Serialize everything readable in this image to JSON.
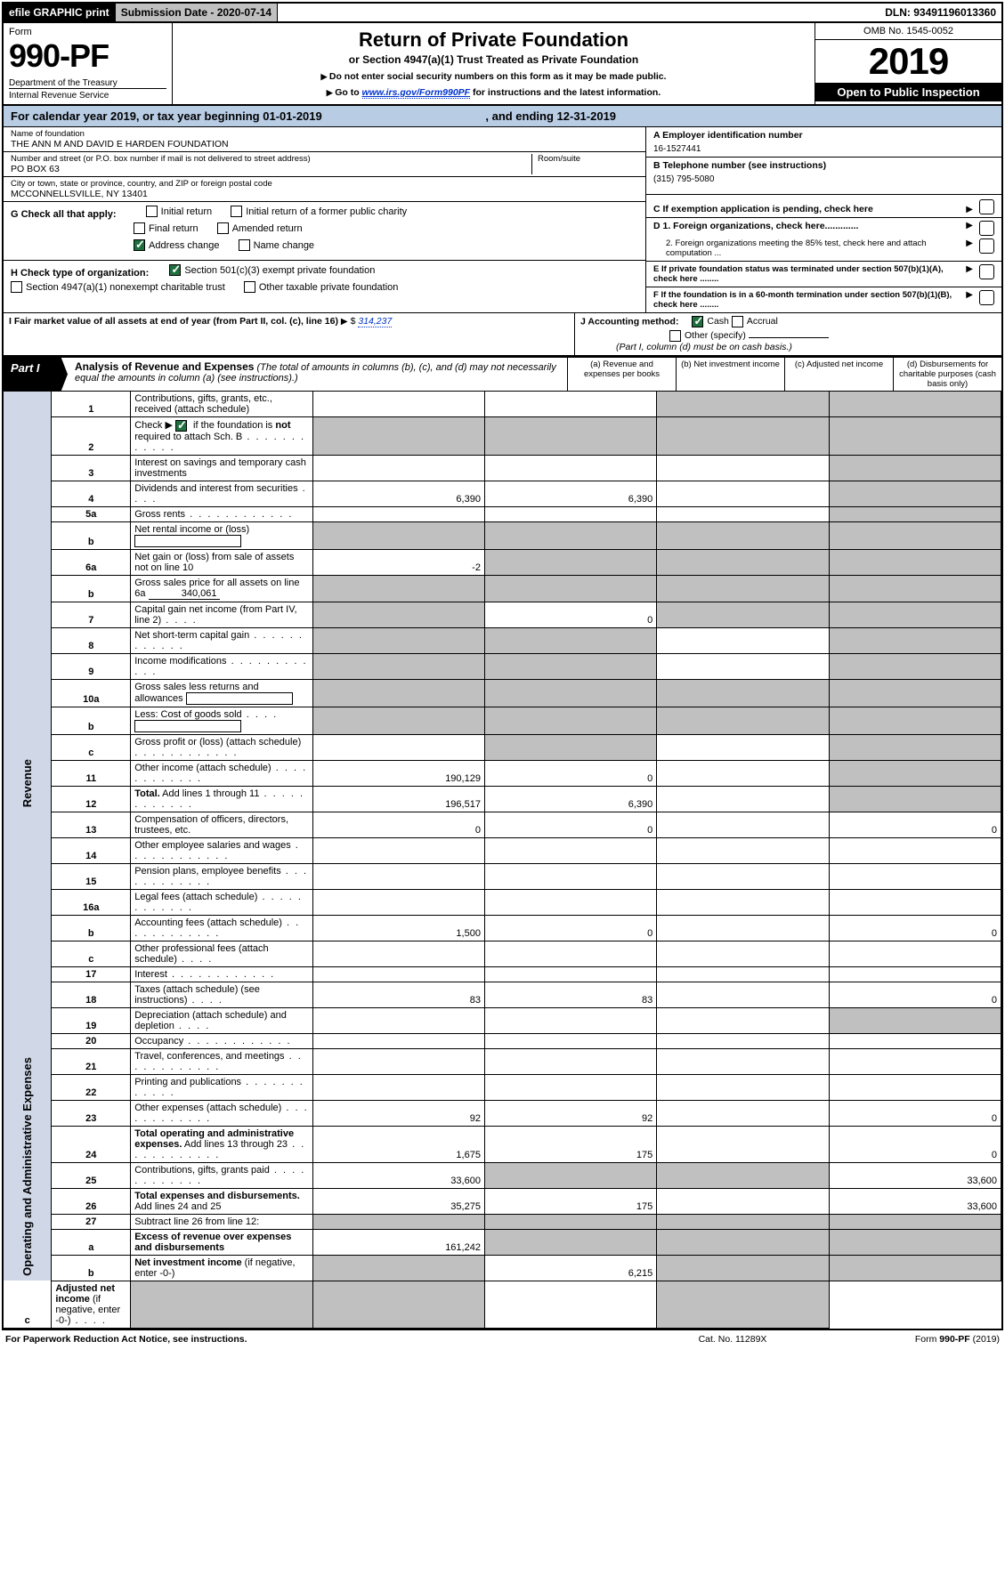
{
  "topbar": {
    "efile": "efile GRAPHIC print",
    "subdate_label": "Submission Date - 2020-07-14",
    "dln": "DLN: 93491196013360"
  },
  "header": {
    "form_label": "Form",
    "form_number": "990-PF",
    "dept": "Department of the Treasury",
    "irs": "Internal Revenue Service",
    "title": "Return of Private Foundation",
    "subtitle": "or Section 4947(a)(1) Trust Treated as Private Foundation",
    "note1": "Do not enter social security numbers on this form as it may be made public.",
    "note2_pre": "Go to ",
    "note2_link": "www.irs.gov/Form990PF",
    "note2_post": " for instructions and the latest information.",
    "omb": "OMB No. 1545-0052",
    "year": "2019",
    "open": "Open to Public Inspection"
  },
  "calyear": {
    "text_pre": "For calendar year 2019, or tax year beginning ",
    "begin": "01-01-2019",
    "text_mid": ", and ending ",
    "end": "12-31-2019"
  },
  "info": {
    "name_label": "Name of foundation",
    "name": "THE ANN M AND DAVID E HARDEN FOUNDATION",
    "street_label": "Number and street (or P.O. box number if mail is not delivered to street address)",
    "street": "PO BOX 63",
    "room_label": "Room/suite",
    "room": "",
    "city_label": "City or town, state or province, country, and ZIP or foreign postal code",
    "city": "MCCONNELLSVILLE, NY  13401",
    "A_label": "A Employer identification number",
    "A_val": "16-1527441",
    "B_label": "B Telephone number (see instructions)",
    "B_val": "(315) 795-5080",
    "C_label": "C If exemption application is pending, check here",
    "D1": "D 1. Foreign organizations, check here.............",
    "D2": "2. Foreign organizations meeting the 85% test, check here and attach computation ...",
    "E": "E  If private foundation status was terminated under section 507(b)(1)(A), check here ........",
    "F": "F  If the foundation is in a 60-month termination under section 507(b)(1)(B), check here ........"
  },
  "checks": {
    "G_label": "G Check all that apply:",
    "initial_return": "Initial return",
    "initial_former": "Initial return of a former public charity",
    "final_return": "Final return",
    "amended": "Amended return",
    "address_change": "Address change",
    "name_change": "Name change",
    "H_label": "H Check type of organization:",
    "h501c3": "Section 501(c)(3) exempt private foundation",
    "h4947": "Section 4947(a)(1) nonexempt charitable trust",
    "hother": "Other taxable private foundation",
    "I_label": "I Fair market value of all assets at end of year (from Part II, col. (c), line 16)",
    "I_val": "314,237",
    "J_label": "J Accounting method:",
    "cash": "Cash",
    "accrual": "Accrual",
    "other_specify": "Other (specify)",
    "J_note": "(Part I, column (d) must be on cash basis.)"
  },
  "part1": {
    "tag": "Part I",
    "title": "Analysis of Revenue and Expenses",
    "title_note": "(The total of amounts in columns (b), (c), and (d) may not necessarily equal the amounts in column (a) (see instructions).)",
    "cols": {
      "a": "(a)   Revenue and expenses per books",
      "b": "(b)   Net investment income",
      "c": "(c)   Adjusted net income",
      "d": "(d)   Disbursements for charitable purposes (cash basis only)"
    }
  },
  "sidelabels": {
    "revenue": "Revenue",
    "oae": "Operating and Administrative Expenses"
  },
  "rows": [
    {
      "n": "1",
      "desc": "Contributions, gifts, grants, etc., received (attach schedule)",
      "a": "",
      "b": "",
      "c": "_",
      "d": "_",
      "dshade": true,
      "cshade": true
    },
    {
      "n": "2",
      "desc_html": "Check ▶ [CK] if the foundation is <b>not</b> required to attach Sch. B",
      "dots": true,
      "a": "_",
      "b": "_",
      "c": "_",
      "d": "_",
      "allshade": true
    },
    {
      "n": "3",
      "desc": "Interest on savings and temporary cash investments",
      "a": "",
      "b": "",
      "c": "",
      "d": "_",
      "dshade": true
    },
    {
      "n": "4",
      "desc": "Dividends and interest from securities",
      "dots_s": true,
      "a": "6,390",
      "b": "6,390",
      "c": "",
      "d": "_",
      "dshade": true
    },
    {
      "n": "5a",
      "desc": "Gross rents",
      "dots": true,
      "a": "",
      "b": "",
      "c": "",
      "d": "_",
      "dshade": true
    },
    {
      "n": "b",
      "desc": "Net rental income or (loss)",
      "inlinebox": "",
      "a": "_",
      "b": "_",
      "c": "_",
      "d": "_",
      "allshade": true
    },
    {
      "n": "6a",
      "desc": "Net gain or (loss) from sale of assets not on line 10",
      "a": "-2",
      "b": "_",
      "c": "_",
      "d": "_",
      "bshade": true,
      "cshade": true,
      "dshade": true
    },
    {
      "n": "b",
      "desc": "Gross sales price for all assets on line 6a",
      "uline": "340,061",
      "a": "_",
      "b": "_",
      "c": "_",
      "d": "_",
      "allshade": true
    },
    {
      "n": "7",
      "desc": "Capital gain net income (from Part IV, line 2)",
      "dots_s": true,
      "a": "_",
      "b": "0",
      "c": "_",
      "d": "_",
      "ashade": true,
      "cshade": true,
      "dshade": true
    },
    {
      "n": "8",
      "desc": "Net short-term capital gain",
      "dots": true,
      "a": "_",
      "b": "_",
      "c": "",
      "d": "_",
      "ashade": true,
      "bshade": true,
      "dshade": true
    },
    {
      "n": "9",
      "desc": "Income modifications",
      "dots": true,
      "a": "_",
      "b": "_",
      "c": "",
      "d": "_",
      "ashade": true,
      "bshade": true,
      "dshade": true
    },
    {
      "n": "10a",
      "desc": "Gross sales less returns and allowances",
      "inlinebox": "",
      "a": "_",
      "b": "_",
      "c": "_",
      "d": "_",
      "allshade": true
    },
    {
      "n": "b",
      "desc": "Less: Cost of goods sold",
      "dots_s": true,
      "inlinebox": "",
      "a": "_",
      "b": "_",
      "c": "_",
      "d": "_",
      "allshade": true
    },
    {
      "n": "c",
      "desc": "Gross profit or (loss) (attach schedule)",
      "dots": true,
      "a": "",
      "b": "_",
      "c": "",
      "d": "_",
      "bshade": true,
      "dshade": true
    },
    {
      "n": "11",
      "desc": "Other income (attach schedule)",
      "dots": true,
      "a": "190,129",
      "b": "0",
      "c": "",
      "d": "_",
      "dshade": true
    },
    {
      "n": "12",
      "desc": "<b>Total.</b> Add lines 1 through 11",
      "dots": true,
      "a": "196,517",
      "b": "6,390",
      "c": "",
      "d": "_",
      "dshade": true
    },
    {
      "n": "13",
      "desc": "Compensation of officers, directors, trustees, etc.",
      "a": "0",
      "b": "0",
      "c": "",
      "d": "0"
    },
    {
      "n": "14",
      "desc": "Other employee salaries and wages",
      "dots": true,
      "a": "",
      "b": "",
      "c": "",
      "d": ""
    },
    {
      "n": "15",
      "desc": "Pension plans, employee benefits",
      "dots": true,
      "a": "",
      "b": "",
      "c": "",
      "d": ""
    },
    {
      "n": "16a",
      "desc": "Legal fees (attach schedule)",
      "dots": true,
      "a": "",
      "b": "",
      "c": "",
      "d": ""
    },
    {
      "n": "b",
      "desc": "Accounting fees (attach schedule)",
      "dots": true,
      "a": "1,500",
      "b": "0",
      "c": "",
      "d": "0"
    },
    {
      "n": "c",
      "desc": "Other professional fees (attach schedule)",
      "dots_s": true,
      "a": "",
      "b": "",
      "c": "",
      "d": ""
    },
    {
      "n": "17",
      "desc": "Interest",
      "dots": true,
      "a": "",
      "b": "",
      "c": "",
      "d": ""
    },
    {
      "n": "18",
      "desc": "Taxes (attach schedule) (see instructions)",
      "dots_s": true,
      "a": "83",
      "b": "83",
      "c": "",
      "d": "0"
    },
    {
      "n": "19",
      "desc": "Depreciation (attach schedule) and depletion",
      "dots_s": true,
      "a": "",
      "b": "",
      "c": "",
      "d": "_",
      "dshade": true
    },
    {
      "n": "20",
      "desc": "Occupancy",
      "dots": true,
      "a": "",
      "b": "",
      "c": "",
      "d": ""
    },
    {
      "n": "21",
      "desc": "Travel, conferences, and meetings",
      "dots": true,
      "a": "",
      "b": "",
      "c": "",
      "d": ""
    },
    {
      "n": "22",
      "desc": "Printing and publications",
      "dots": true,
      "a": "",
      "b": "",
      "c": "",
      "d": ""
    },
    {
      "n": "23",
      "desc": "Other expenses (attach schedule)",
      "dots": true,
      "a": "92",
      "b": "92",
      "c": "",
      "d": "0"
    },
    {
      "n": "24",
      "desc": "<b>Total operating and administrative expenses.</b> Add lines 13 through 23",
      "dots": true,
      "a": "1,675",
      "b": "175",
      "c": "",
      "d": "0"
    },
    {
      "n": "25",
      "desc": "Contributions, gifts, grants paid",
      "dots": true,
      "a": "33,600",
      "b": "_",
      "c": "_",
      "d": "33,600",
      "bshade": true,
      "cshade": true
    },
    {
      "n": "26",
      "desc": "<b>Total expenses and disbursements.</b> Add lines 24 and 25",
      "a": "35,275",
      "b": "175",
      "c": "",
      "d": "33,600"
    },
    {
      "n": "27",
      "desc": "Subtract line 26 from line 12:",
      "a": "_",
      "b": "_",
      "c": "_",
      "d": "_",
      "allshade": true
    },
    {
      "n": "a",
      "desc": "<b>Excess of revenue over expenses and disbursements</b>",
      "a": "161,242",
      "b": "_",
      "c": "_",
      "d": "_",
      "bshade": true,
      "cshade": true,
      "dshade": true
    },
    {
      "n": "b",
      "desc": "<b>Net investment income</b> (if negative, enter -0-)",
      "a": "_",
      "b": "6,215",
      "c": "_",
      "d": "_",
      "ashade": true,
      "cshade": true,
      "dshade": true
    },
    {
      "n": "c",
      "desc": "<b>Adjusted net income</b> (if negative, enter -0-)",
      "dots_s": true,
      "a": "_",
      "b": "_",
      "c": "",
      "d": "_",
      "ashade": true,
      "bshade": true,
      "dshade": true
    }
  ],
  "footer": {
    "left": "For Paperwork Reduction Act Notice, see instructions.",
    "center": "Cat. No. 11289X",
    "right": "Form 990-PF (2019)"
  }
}
